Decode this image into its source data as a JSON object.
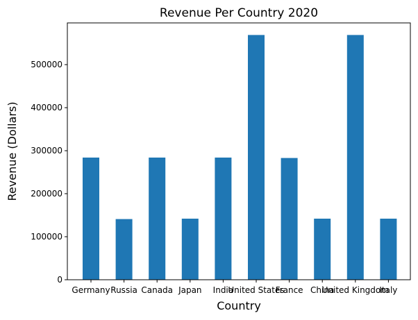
{
  "chart_data": {
    "type": "bar",
    "title": "Revenue Per Country 2020",
    "xlabel": "Country",
    "ylabel": "Revenue (Dollars)",
    "categories": [
      "Germany",
      "Russia",
      "Canada",
      "Japan",
      "India",
      "United States",
      "France",
      "China",
      "United Kingdom",
      "Italy"
    ],
    "values": [
      284000,
      141000,
      284000,
      142000,
      284000,
      569000,
      283000,
      142000,
      569000,
      142000
    ],
    "ylim": [
      0,
      597000
    ],
    "yticks": [
      0,
      100000,
      200000,
      300000,
      400000,
      500000
    ],
    "grid": false,
    "legend": "none",
    "bar_color": "#1f77b4"
  }
}
